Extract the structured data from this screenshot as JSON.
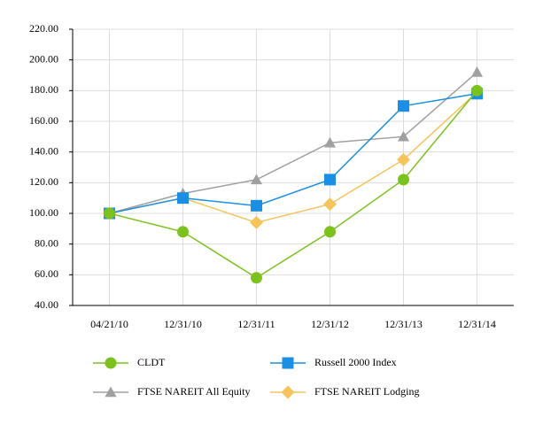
{
  "chart_data": {
    "type": "line",
    "categories": [
      "04/21/10",
      "12/31/10",
      "12/31/11",
      "12/31/12",
      "12/31/13",
      "12/31/14"
    ],
    "series": [
      {
        "name": "CLDT",
        "color": "#7cc21f",
        "marker": "circle",
        "values": [
          100,
          88,
          58,
          88,
          122,
          180
        ]
      },
      {
        "name": "Russell 2000 Index",
        "color": "#1a8fe3",
        "marker": "square",
        "values": [
          100,
          110,
          105,
          122,
          170,
          178
        ]
      },
      {
        "name": "FTSE NAREIT All Equity",
        "color": "#a0a0a0",
        "marker": "triangle",
        "values": [
          100,
          113,
          122,
          146,
          150,
          192
        ]
      },
      {
        "name": "FTSE NAREIT Lodging",
        "color": "#f5c45a",
        "marker": "diamond",
        "values": [
          100,
          110,
          94,
          106,
          135,
          179
        ]
      }
    ],
    "ylim": [
      40,
      220
    ],
    "yticks": [
      {
        "value": 40,
        "label": "40.00"
      },
      {
        "value": 60,
        "label": "60.00"
      },
      {
        "value": 80,
        "label": "80.00"
      },
      {
        "value": 100,
        "label": "100.00"
      },
      {
        "value": 120,
        "label": "120.00"
      },
      {
        "value": 140,
        "label": "140.00"
      },
      {
        "value": 160,
        "label": "160.00"
      },
      {
        "value": 180,
        "label": "180.00"
      },
      {
        "value": 200,
        "label": "200.00"
      },
      {
        "value": 220,
        "label": "220.00"
      }
    ],
    "grid": true
  }
}
